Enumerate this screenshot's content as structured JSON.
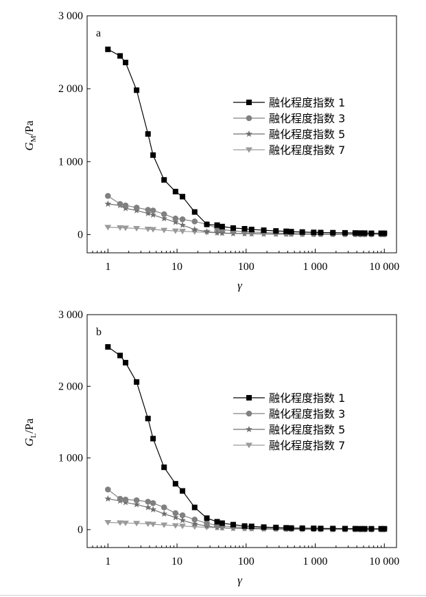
{
  "chart_data": [
    {
      "type": "line",
      "panel_label": "a",
      "ylabel_main": "G",
      "ylabel_sub": "M",
      "ylabel_unit": "/Pa",
      "xlabel": "γ",
      "x_scale": "log",
      "xlim": [
        0.5,
        15000
      ],
      "ylim": [
        -250,
        3000
      ],
      "yticks": [
        0,
        1000,
        2000,
        3000
      ],
      "ytick_labels": [
        "0",
        "1 000",
        "2 000",
        "3 000"
      ],
      "xticks": [
        1,
        10,
        100,
        1000,
        10000
      ],
      "xtick_labels": [
        "1",
        "10",
        "100",
        "1 000",
        "10 000"
      ],
      "legend_position": "right",
      "series": [
        {
          "name": "融化程度指数 1",
          "marker": "square",
          "color": "#000000",
          "x": [
            1,
            1.5,
            1.8,
            2.6,
            3.8,
            4.5,
            6.5,
            9.5,
            12,
            18,
            27,
            38,
            45,
            65,
            95,
            120,
            180,
            270,
            380,
            450,
            650,
            950,
            1200,
            1800,
            2700,
            3800,
            4500,
            5200,
            6500,
            9000,
            10000
          ],
          "y": [
            2540,
            2450,
            2360,
            1980,
            1380,
            1090,
            750,
            590,
            520,
            310,
            140,
            130,
            110,
            90,
            80,
            70,
            60,
            50,
            45,
            40,
            35,
            30,
            28,
            26,
            24,
            22,
            20,
            20,
            18,
            18,
            18
          ]
        },
        {
          "name": "融化程度指数 3",
          "marker": "circle",
          "color": "#808080",
          "x": [
            1,
            1.5,
            1.8,
            2.6,
            3.8,
            4.5,
            6.5,
            9.5,
            12,
            18,
            27,
            38,
            45,
            65,
            95,
            120,
            180,
            270,
            380,
            450,
            650,
            950,
            1200,
            1800,
            2700,
            3800,
            4500,
            5200,
            6500,
            9000,
            10000
          ],
          "y": [
            530,
            420,
            400,
            370,
            340,
            330,
            280,
            220,
            210,
            180,
            140,
            90,
            70,
            50,
            40,
            35,
            28,
            22,
            18,
            15,
            12,
            10,
            9,
            8,
            7,
            6,
            5,
            5,
            5,
            5,
            5
          ]
        },
        {
          "name": "融化程度指数 5",
          "marker": "star",
          "color": "#6e6e6e",
          "x": [
            1,
            1.5,
            1.8,
            2.6,
            3.8,
            4.5,
            6.5,
            9.5,
            12,
            18,
            27,
            38,
            45,
            65,
            95,
            120,
            180,
            270,
            380,
            450,
            650,
            950,
            1200,
            1800,
            2700,
            3800,
            4500,
            5200,
            6500,
            9000,
            10000
          ],
          "y": [
            420,
            400,
            360,
            330,
            290,
            270,
            220,
            170,
            130,
            70,
            40,
            25,
            20,
            15,
            12,
            10,
            8,
            6,
            5,
            5,
            4,
            4,
            3,
            3,
            3,
            3,
            3,
            3,
            3,
            3,
            3
          ]
        },
        {
          "name": "融化程度指数 7",
          "marker": "triangle-down",
          "color": "#9a9a9a",
          "x": [
            1,
            1.5,
            1.8,
            2.6,
            3.8,
            4.5,
            6.5,
            9.5,
            12,
            18,
            27,
            38,
            45,
            65,
            95,
            120,
            180,
            270,
            380,
            450,
            650,
            950,
            1200,
            1800,
            2700,
            3800,
            4500,
            5200,
            6500,
            9000,
            10000
          ],
          "y": [
            100,
            95,
            90,
            85,
            75,
            70,
            60,
            50,
            45,
            38,
            30,
            25,
            22,
            18,
            15,
            13,
            11,
            9,
            8,
            7,
            6,
            5,
            5,
            4,
            4,
            4,
            4,
            4,
            4,
            4,
            4
          ]
        }
      ]
    },
    {
      "type": "line",
      "panel_label": "b",
      "ylabel_main": "G",
      "ylabel_sub": "L",
      "ylabel_unit": "/Pa",
      "xlabel": "γ",
      "x_scale": "log",
      "xlim": [
        0.5,
        15000
      ],
      "ylim": [
        -250,
        3000
      ],
      "yticks": [
        0,
        1000,
        2000,
        3000
      ],
      "ytick_labels": [
        "0",
        "1 000",
        "2 000",
        "3 000"
      ],
      "xticks": [
        1,
        10,
        100,
        1000,
        10000
      ],
      "xtick_labels": [
        "1",
        "10",
        "100",
        "1 000",
        "10 000"
      ],
      "legend_position": "right",
      "series": [
        {
          "name": "融化程度指数 1",
          "marker": "square",
          "color": "#000000",
          "x": [
            1,
            1.5,
            1.8,
            2.6,
            3.8,
            4.5,
            6.5,
            9.5,
            12,
            18,
            27,
            38,
            45,
            65,
            95,
            120,
            180,
            270,
            380,
            450,
            650,
            950,
            1200,
            1800,
            2700,
            3800,
            4500,
            5200,
            6500,
            9000,
            10000
          ],
          "y": [
            2550,
            2430,
            2330,
            2060,
            1550,
            1270,
            870,
            640,
            540,
            310,
            160,
            110,
            90,
            70,
            50,
            45,
            35,
            30,
            25,
            22,
            20,
            18,
            16,
            15,
            14,
            13,
            12,
            12,
            12,
            12,
            12
          ]
        },
        {
          "name": "融化程度指数 3",
          "marker": "circle",
          "color": "#808080",
          "x": [
            1,
            1.5,
            1.8,
            2.6,
            3.8,
            4.5,
            6.5,
            9.5,
            12,
            18,
            27,
            38,
            45,
            65,
            95,
            120,
            180,
            270,
            380,
            450,
            650,
            950,
            1200,
            1800,
            2700,
            3800,
            4500,
            5200,
            6500,
            9000,
            10000
          ],
          "y": [
            560,
            430,
            420,
            410,
            390,
            370,
            310,
            230,
            200,
            140,
            90,
            60,
            50,
            40,
            30,
            25,
            20,
            16,
            13,
            12,
            10,
            9,
            8,
            7,
            6,
            6,
            5,
            5,
            5,
            5,
            5
          ]
        },
        {
          "name": "融化程度指数 5",
          "marker": "star",
          "color": "#6e6e6e",
          "x": [
            1,
            1.5,
            1.8,
            2.6,
            3.8,
            4.5,
            6.5,
            9.5,
            12,
            18,
            27,
            38,
            45,
            65,
            95,
            120,
            180,
            270,
            380,
            450,
            650,
            950,
            1200,
            1800,
            2700,
            3800,
            4500,
            5200,
            6500,
            9000,
            10000
          ],
          "y": [
            430,
            400,
            380,
            350,
            310,
            280,
            220,
            170,
            130,
            80,
            50,
            30,
            25,
            18,
            14,
            12,
            9,
            7,
            6,
            5,
            4,
            4,
            3,
            3,
            3,
            3,
            3,
            3,
            3,
            3,
            3
          ]
        },
        {
          "name": "融化程度指数 7",
          "marker": "triangle-down",
          "color": "#9a9a9a",
          "x": [
            1,
            1.5,
            1.8,
            2.6,
            3.8,
            4.5,
            6.5,
            9.5,
            12,
            18,
            27,
            38,
            45,
            65,
            95,
            120,
            180,
            270,
            380,
            450,
            650,
            950,
            1200,
            1800,
            2700,
            3800,
            4500,
            5200,
            6500,
            9000,
            10000
          ],
          "y": [
            100,
            95,
            92,
            88,
            80,
            75,
            65,
            55,
            50,
            40,
            33,
            27,
            24,
            20,
            17,
            15,
            12,
            10,
            9,
            8,
            7,
            6,
            6,
            5,
            5,
            5,
            5,
            5,
            5,
            5,
            5
          ]
        }
      ]
    }
  ]
}
